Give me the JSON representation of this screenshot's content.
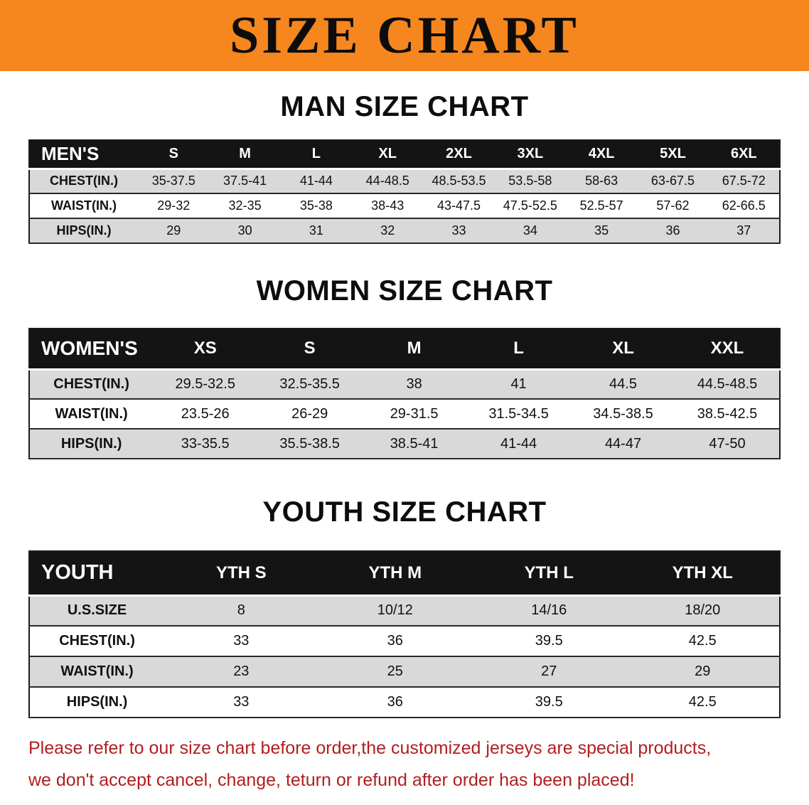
{
  "banner": {
    "title": "SIZE CHART",
    "bg_color": "#f6861e"
  },
  "sections": [
    {
      "heading": "MAN SIZE CHART",
      "table": {
        "header_label": "MEN'S",
        "columns": [
          "S",
          "M",
          "L",
          "XL",
          "2XL",
          "3XL",
          "4XL",
          "5XL",
          "6XL"
        ],
        "rows": [
          {
            "label": "CHEST(IN.)",
            "values": [
              "35-37.5",
              "37.5-41",
              "41-44",
              "44-48.5",
              "48.5-53.5",
              "53.5-58",
              "58-63",
              "63-67.5",
              "67.5-72"
            ]
          },
          {
            "label": "WAIST(IN.)",
            "values": [
              "29-32",
              "32-35",
              "35-38",
              "38-43",
              "43-47.5",
              "47.5-52.5",
              "52.5-57",
              "57-62",
              "62-66.5"
            ]
          },
          {
            "label": "HIPS(IN.)",
            "values": [
              "29",
              "30",
              "31",
              "32",
              "33",
              "34",
              "35",
              "36",
              "37"
            ]
          }
        ]
      }
    },
    {
      "heading": "WOMEN SIZE CHART",
      "table": {
        "header_label": "WOMEN'S",
        "columns": [
          "XS",
          "S",
          "M",
          "L",
          "XL",
          "XXL"
        ],
        "rows": [
          {
            "label": "CHEST(IN.)",
            "values": [
              "29.5-32.5",
              "32.5-35.5",
              "38",
              "41",
              "44.5",
              "44.5-48.5"
            ]
          },
          {
            "label": "WAIST(IN.)",
            "values": [
              "23.5-26",
              "26-29",
              "29-31.5",
              "31.5-34.5",
              "34.5-38.5",
              "38.5-42.5"
            ]
          },
          {
            "label": "HIPS(IN.)",
            "values": [
              "33-35.5",
              "35.5-38.5",
              "38.5-41",
              "41-44",
              "44-47",
              "47-50"
            ]
          }
        ]
      }
    },
    {
      "heading": "YOUTH SIZE CHART",
      "table": {
        "header_label": "YOUTH",
        "columns": [
          "YTH S",
          "YTH M",
          "YTH L",
          "YTH XL"
        ],
        "rows": [
          {
            "label": "U.S.SIZE",
            "values": [
              "8",
              "10/12",
              "14/16",
              "18/20"
            ]
          },
          {
            "label": "CHEST(IN.)",
            "values": [
              "33",
              "36",
              "39.5",
              "42.5"
            ]
          },
          {
            "label": "WAIST(IN.)",
            "values": [
              "23",
              "25",
              "27",
              "29"
            ]
          },
          {
            "label": "HIPS(IN.)",
            "values": [
              "33",
              "36",
              "39.5",
              "42.5"
            ]
          }
        ]
      }
    }
  ],
  "footer": {
    "line1": "Please refer to our size chart before order,the customized jerseys are special products,",
    "line2": "we don't accept cancel, change, teturn or refund after order has been placed!",
    "text_color": "#b21e1e"
  }
}
